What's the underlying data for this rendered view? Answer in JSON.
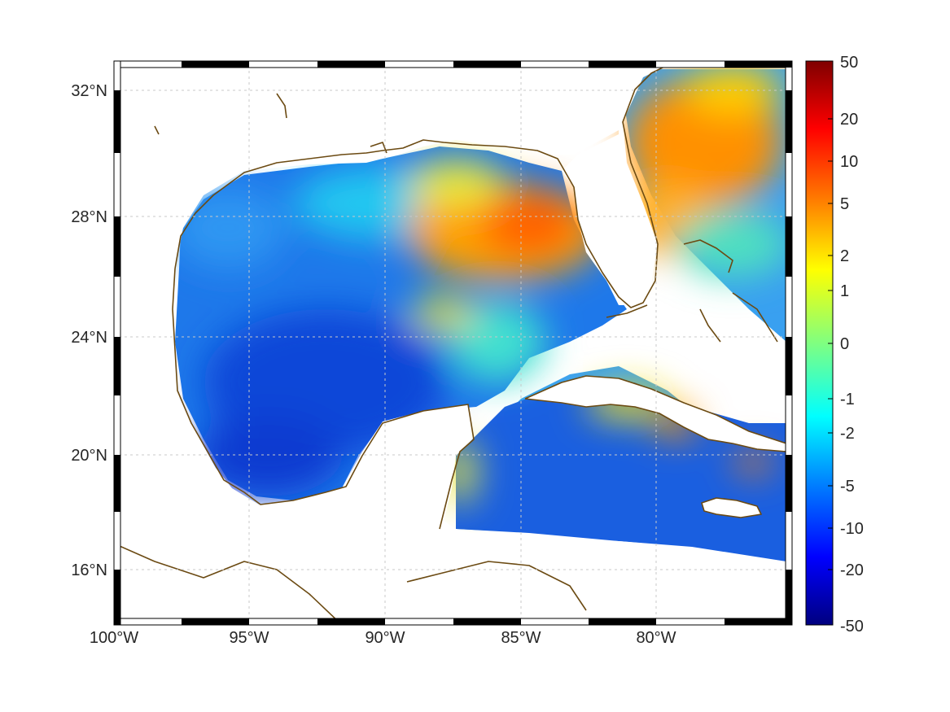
{
  "map": {
    "type": "heatmap",
    "region": "Gulf of Mexico and Caribbean",
    "x_ticks": [
      "100°W",
      "95°W",
      "90°W",
      "85°W",
      "80°W"
    ],
    "y_ticks": [
      "32°N",
      "28°N",
      "24°N",
      "20°N",
      "16°N"
    ],
    "lon_range": [
      -100,
      -75
    ],
    "lat_range": [
      14.5,
      33
    ],
    "grid": true,
    "frame": "black-white checkered border",
    "colors": {
      "land": "#ffffff",
      "coastline": "#6b4a12",
      "grid": "#c8c8c8"
    }
  },
  "colorbar": {
    "placement": "right",
    "ticks": [
      "50",
      "20",
      "10",
      "5",
      "2",
      "1",
      "0",
      "-1",
      "-2",
      "-5",
      "-10",
      "-20",
      "-50"
    ],
    "colormap": [
      "#7f0000",
      "#ff0000",
      "#ff8000",
      "#ffff00",
      "#80ff80",
      "#00ffff",
      "#0080ff",
      "#0000ff",
      "#00007f"
    ]
  },
  "chart_data": {
    "type": "heatmap",
    "title": "",
    "xlabel": "",
    "ylabel": "",
    "x_ticks": [
      "100°W",
      "95°W",
      "90°W",
      "85°W",
      "80°W"
    ],
    "y_ticks": [
      "32°N",
      "28°N",
      "24°N",
      "20°N",
      "16°N"
    ],
    "colorbar_ticks": [
      50,
      20,
      10,
      5,
      2,
      1,
      0,
      -1,
      -2,
      -5,
      -10,
      -20,
      -50
    ],
    "regions": [
      {
        "name": "Florida Atlantic coast",
        "level": "high",
        "approx_value": 5
      },
      {
        "name": "Northeastern Gulf (Florida shelf)",
        "level": "high",
        "approx_value": 5
      },
      {
        "name": "Western Gulf",
        "level": "low",
        "approx_value": -5
      },
      {
        "name": "Bay of Campeche",
        "level": "low",
        "approx_value": -10
      },
      {
        "name": "Caribbean Sea",
        "level": "low",
        "approx_value": -5
      },
      {
        "name": "South of Cuba",
        "level": "near zero",
        "approx_value": 1
      }
    ]
  }
}
